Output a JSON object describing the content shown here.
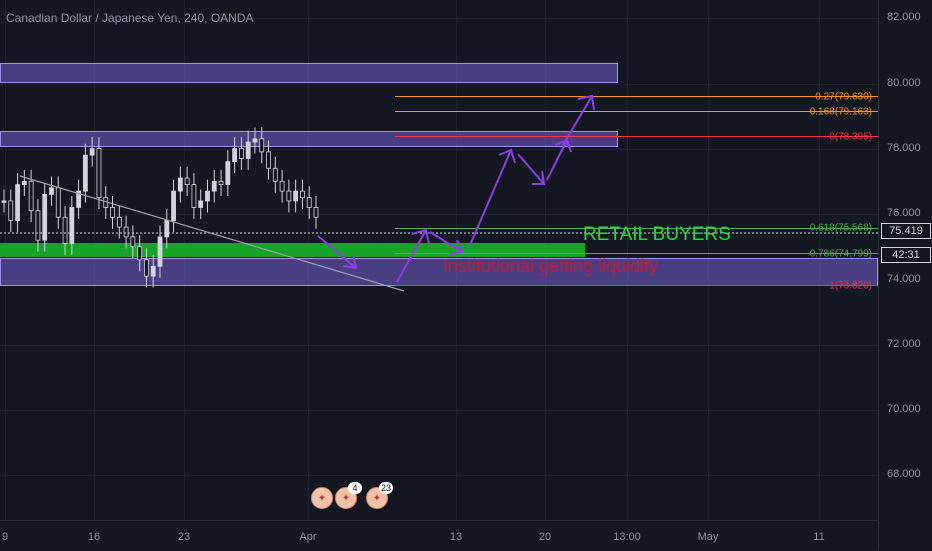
{
  "title": "Canadian Dollar / Japanese Yen, 240, OANDA",
  "price_axis": {
    "ticks": [
      "82.000",
      "80.000",
      "78.000",
      "76.000",
      "74.000",
      "72.000",
      "70.000",
      "68.000"
    ],
    "current_price": "75.419",
    "countdown": "42:31"
  },
  "time_axis": {
    "ticks": [
      "9",
      "16",
      "23",
      "Apr",
      "13",
      "20",
      "13:00",
      "May",
      "11"
    ]
  },
  "fib_levels": [
    {
      "label": "-0.27(79.630)",
      "color": "#ff9800"
    },
    {
      "label": "-0.168(79.163)",
      "color": "#ff9800"
    },
    {
      "label": "0(78.395)",
      "color": "#f23645"
    },
    {
      "label": "0.618(75.568)",
      "color": "#4caf50"
    },
    {
      "label": "0.786(74.799)",
      "color": "#4caf50"
    },
    {
      "label": "1(73.820)",
      "color": "#f23645"
    }
  ],
  "annotations": {
    "retail_buyers": "RETAIL BUYERS",
    "institutional": "Institutional getting liquidity"
  },
  "events": {
    "group1_count": "4",
    "group2_count": "23"
  },
  "chart_data": {
    "type": "candlestick",
    "title": "Canadian Dollar / Japanese Yen, 240, OANDA",
    "ylim": [
      67,
      82.8
    ],
    "x_ticks": [
      "9",
      "16",
      "23",
      "Apr",
      "13",
      "20",
      "13:00",
      "May",
      "11"
    ],
    "y_ticks": [
      82,
      80,
      78,
      76,
      74,
      72,
      70,
      68
    ],
    "closes": [
      76.4,
      75.8,
      76.9,
      77.0,
      76.1,
      75.2,
      76.6,
      76.8,
      75.9,
      75.1,
      76.2,
      76.7,
      77.8,
      78.0,
      76.5,
      76.2,
      75.9,
      75.6,
      75.3,
      75.0,
      74.6,
      74.1,
      74.4,
      75.3,
      75.8,
      76.7,
      77.1,
      76.9,
      76.2,
      76.4,
      76.7,
      77.0,
      76.9,
      77.6,
      78.0,
      77.7,
      78.2,
      78.3,
      77.9,
      77.4,
      77.0,
      76.7,
      76.4,
      76.7,
      76.5,
      76.2,
      75.9
    ],
    "current_price": 75.419,
    "zones": [
      {
        "top": 80.5,
        "bottom": 79.95
      },
      {
        "top": 78.45,
        "bottom": 77.95
      },
      {
        "top": 74.6,
        "bottom": 73.8
      }
    ],
    "green_zone": {
      "top": 75.05,
      "bottom": 74.6
    },
    "fibonacci": [
      {
        "ratio": -0.27,
        "price": 79.63
      },
      {
        "ratio": -0.168,
        "price": 79.163
      },
      {
        "ratio": 0,
        "price": 78.395
      },
      {
        "ratio": 0.618,
        "price": 75.568
      },
      {
        "ratio": 0.786,
        "price": 74.799
      },
      {
        "ratio": 1,
        "price": 73.82
      }
    ]
  }
}
